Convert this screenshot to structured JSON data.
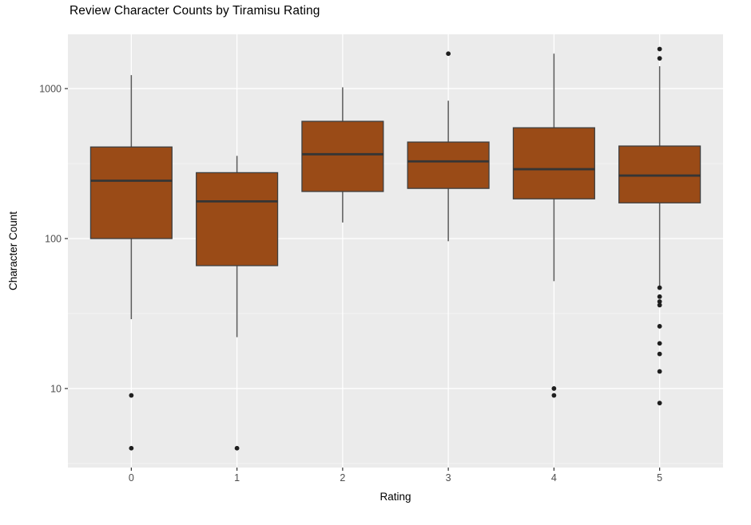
{
  "colors": {
    "background": "#FFFFFF",
    "panel_background": "#EBEBEB",
    "grid_major": "#FFFFFF",
    "grid_minor": "#F5F5F5",
    "box_fill": "#9A4B17",
    "box_border": "#3F3F3F",
    "median_line": "#353535",
    "whisker": "#5A5A5A",
    "outlier": "#1F1F1F",
    "tick_mark": "#333333",
    "tick_label": "#4D4D4D",
    "axis_title": "#000000",
    "title": "#000000"
  },
  "chart_data": {
    "type": "boxplot",
    "title": "Review Character Counts by Tiramisu Rating",
    "xlabel": "Rating",
    "ylabel": "Character Count",
    "y_scale": "log10",
    "grid": "on",
    "legend": "none",
    "y_tick_labels": [
      "10",
      "100",
      "1000"
    ],
    "y_tick_values": [
      10,
      100,
      1000
    ],
    "y_minor_values": [
      3.162,
      31.62,
      316.23
    ],
    "ylim_log10": [
      0.473,
      3.362
    ],
    "categories": [
      "0",
      "1",
      "2",
      "3",
      "4",
      "5"
    ],
    "series": [
      {
        "category": "0",
        "whisker_low": 29,
        "q1": 100,
        "median": 243,
        "q3": 408,
        "whisker_high": 1230,
        "outliers": [
          9,
          4
        ]
      },
      {
        "category": "1",
        "whisker_low": 22,
        "q1": 66,
        "median": 177,
        "q3": 275,
        "whisker_high": 356,
        "outliers": [
          4
        ]
      },
      {
        "category": "2",
        "whisker_low": 128,
        "q1": 206,
        "median": 365,
        "q3": 605,
        "whisker_high": 1020,
        "outliers": []
      },
      {
        "category": "3",
        "whisker_low": 96,
        "q1": 216,
        "median": 327,
        "q3": 440,
        "whisker_high": 830,
        "outliers": [
          1710
        ]
      },
      {
        "category": "4",
        "whisker_low": 52,
        "q1": 184,
        "median": 290,
        "q3": 548,
        "whisker_high": 1710,
        "outliers": [
          10,
          9
        ]
      },
      {
        "category": "5",
        "whisker_low": 48,
        "q1": 173,
        "median": 263,
        "q3": 414,
        "whisker_high": 1410,
        "outliers": [
          1835,
          1590,
          47,
          41,
          38,
          36,
          26,
          20,
          17,
          13,
          8
        ]
      }
    ]
  }
}
